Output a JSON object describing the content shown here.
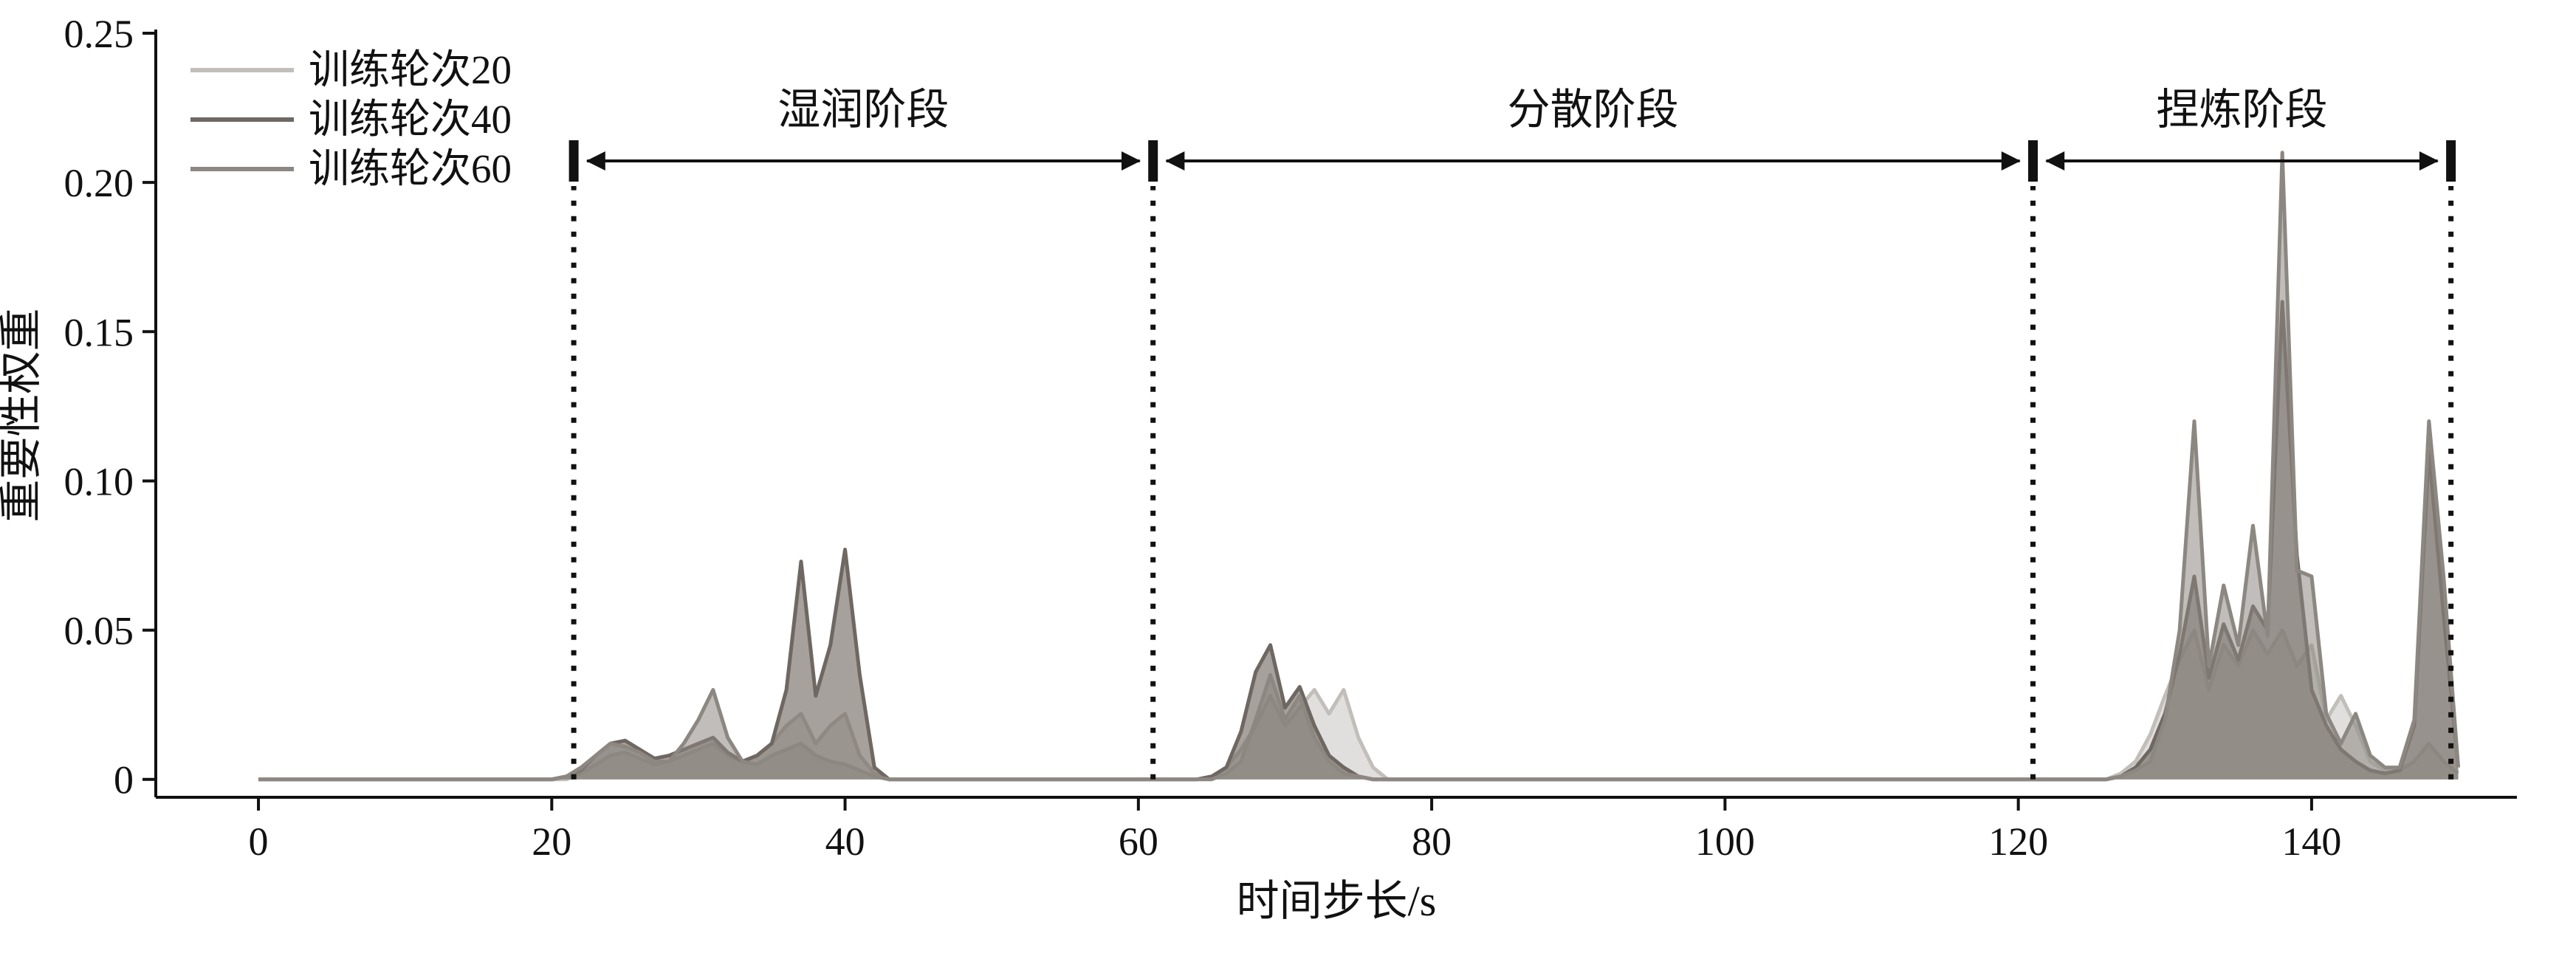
{
  "figure": {
    "background": "#ffffff",
    "text_color": "#111111"
  },
  "chart_data": {
    "type": "area",
    "title": "",
    "xlabel": "时间步长/s",
    "ylabel": "重要性权重",
    "xlim": [
      -7,
      154
    ],
    "ylim": [
      -0.006,
      0.25
    ],
    "xticks": [
      0,
      20,
      40,
      60,
      80,
      100,
      120,
      140
    ],
    "yticks": [
      0,
      0.05,
      0.1,
      0.15,
      0.2,
      0.25
    ],
    "grid": false,
    "legend_position": "upper-left",
    "x": [
      0,
      20,
      21,
      22,
      23,
      24,
      25,
      26,
      27,
      28,
      29,
      30,
      31,
      32,
      33,
      34,
      35,
      36,
      37,
      38,
      39,
      40,
      41,
      42,
      43,
      50,
      60,
      64,
      65,
      66,
      67,
      68,
      69,
      70,
      71,
      72,
      73,
      74,
      75,
      76,
      77,
      90,
      120,
      126,
      127,
      128,
      129,
      130,
      131,
      132,
      133,
      134,
      135,
      136,
      137,
      138,
      139,
      140,
      141,
      142,
      143,
      144,
      145,
      146,
      147,
      148,
      149,
      150
    ],
    "series": [
      {
        "name": "训练轮次20",
        "color": "#c2beba",
        "fill": "rgba(201,197,193,0.55)",
        "values": [
          0,
          0,
          0,
          0.002,
          0.005,
          0.008,
          0.009,
          0.007,
          0.005,
          0.006,
          0.008,
          0.01,
          0.012,
          0.008,
          0.006,
          0.008,
          0.012,
          0.018,
          0.022,
          0.012,
          0.018,
          0.022,
          0.008,
          0.002,
          0,
          0,
          0,
          0,
          0.001,
          0.004,
          0.01,
          0.018,
          0.028,
          0.018,
          0.024,
          0.03,
          0.022,
          0.03,
          0.014,
          0.004,
          0,
          0,
          0,
          0,
          0.002,
          0.006,
          0.015,
          0.028,
          0.04,
          0.05,
          0.03,
          0.045,
          0.038,
          0.05,
          0.042,
          0.05,
          0.038,
          0.045,
          0.02,
          0.028,
          0.018,
          0.006,
          0.003,
          0.003,
          0.006,
          0.012,
          0.006,
          0.002
        ]
      },
      {
        "name": "训练轮次40",
        "color": "#6f6761",
        "fill": "rgba(111,103,97,0.62)",
        "values": [
          0,
          0,
          0.001,
          0.003,
          0.008,
          0.012,
          0.013,
          0.01,
          0.007,
          0.008,
          0.01,
          0.012,
          0.014,
          0.009,
          0.006,
          0.008,
          0.012,
          0.03,
          0.073,
          0.028,
          0.045,
          0.077,
          0.035,
          0.004,
          0,
          0,
          0,
          0,
          0.001,
          0.004,
          0.016,
          0.036,
          0.045,
          0.024,
          0.031,
          0.018,
          0.008,
          0.004,
          0.001,
          0,
          0,
          0,
          0,
          0,
          0.001,
          0.004,
          0.01,
          0.022,
          0.042,
          0.068,
          0.034,
          0.052,
          0.04,
          0.058,
          0.05,
          0.16,
          0.075,
          0.03,
          0.018,
          0.01,
          0.006,
          0.003,
          0.002,
          0.003,
          0.018,
          0.11,
          0.055,
          0.004
        ]
      },
      {
        "name": "训练轮次60",
        "color": "#8d8781",
        "fill": "rgba(141,135,129,0.55)",
        "values": [
          0,
          0,
          0.001,
          0.004,
          0.008,
          0.012,
          0.011,
          0.009,
          0.006,
          0.006,
          0.012,
          0.02,
          0.03,
          0.014,
          0.006,
          0.005,
          0.008,
          0.01,
          0.012,
          0.008,
          0.006,
          0.005,
          0.003,
          0.001,
          0,
          0,
          0,
          0,
          0,
          0.002,
          0.006,
          0.02,
          0.035,
          0.02,
          0.028,
          0.014,
          0.006,
          0.002,
          0.001,
          0,
          0,
          0,
          0,
          0,
          0.001,
          0.003,
          0.006,
          0.02,
          0.05,
          0.12,
          0.038,
          0.065,
          0.045,
          0.085,
          0.048,
          0.21,
          0.07,
          0.068,
          0.022,
          0.012,
          0.022,
          0.008,
          0.004,
          0.004,
          0.02,
          0.12,
          0.068,
          0.004
        ]
      }
    ],
    "phases": {
      "boundaries": [
        21.5,
        61,
        121,
        149.5
      ],
      "labels": [
        "湿润阶段",
        "分散阶段",
        "捏炼阶段"
      ],
      "marker_value": 0.207,
      "dotted_top_value": 0.196
    }
  }
}
